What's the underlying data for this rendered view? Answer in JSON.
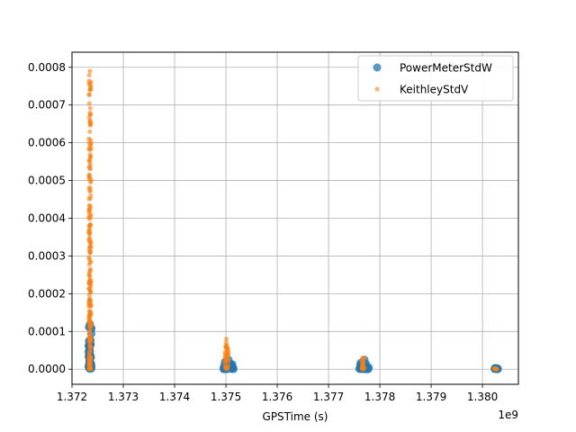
{
  "chart_data": {
    "type": "scatter",
    "xlabel": "GPSTime (s)",
    "ylabel": "",
    "x_offset_label": "1e9",
    "x_scale": 1000000000,
    "xlim": [
      1.372,
      1.3807
    ],
    "ylim": [
      -4e-05,
      0.00084
    ],
    "x_ticks": [
      1.372,
      1.373,
      1.374,
      1.375,
      1.376,
      1.377,
      1.378,
      1.379,
      1.38
    ],
    "x_tick_labels": [
      "1.372",
      "1.373",
      "1.374",
      "1.375",
      "1.376",
      "1.377",
      "1.378",
      "1.379",
      "1.380"
    ],
    "y_ticks": [
      0,
      0.0001,
      0.0002,
      0.0003,
      0.0004,
      0.0005,
      0.0006,
      0.0007,
      0.0008
    ],
    "y_tick_labels": [
      "0.0000",
      "0.0001",
      "0.0002",
      "0.0003",
      "0.0004",
      "0.0005",
      "0.0006",
      "0.0007",
      "0.0008"
    ],
    "grid": true,
    "legend_position": "top-right",
    "series": [
      {
        "name": "PowerMeterStdW",
        "color": "#1f77b4",
        "marker": "large-circle",
        "clusters": [
          {
            "x": [
              1.37232,
              1.37238
            ],
            "y": [
              0,
              0.00012
            ]
          },
          {
            "x": [
              1.37495,
              1.37515
            ],
            "y": [
              0,
              2.5e-05
            ]
          },
          {
            "x": [
              1.3776,
              1.3778
            ],
            "y": [
              0,
              2.5e-05
            ]
          },
          {
            "x": [
              1.3802,
              1.3803
            ],
            "y": [
              0,
              3e-06
            ]
          }
        ]
      },
      {
        "name": "KeithleyStdV",
        "color": "#ff7f0e",
        "marker": "small-circle",
        "clusters": [
          {
            "x": [
              1.37233,
              1.37237
            ],
            "y": [
              0,
              0.00079
            ]
          },
          {
            "x": [
              1.37497,
              1.37505
            ],
            "y": [
              0,
              8e-05
            ]
          },
          {
            "x": [
              1.37765,
              1.3777
            ],
            "y": [
              0,
              3e-05
            ]
          },
          {
            "x": [
              1.38022,
              1.38028
            ],
            "y": [
              0,
              2e-06
            ]
          }
        ]
      }
    ]
  }
}
